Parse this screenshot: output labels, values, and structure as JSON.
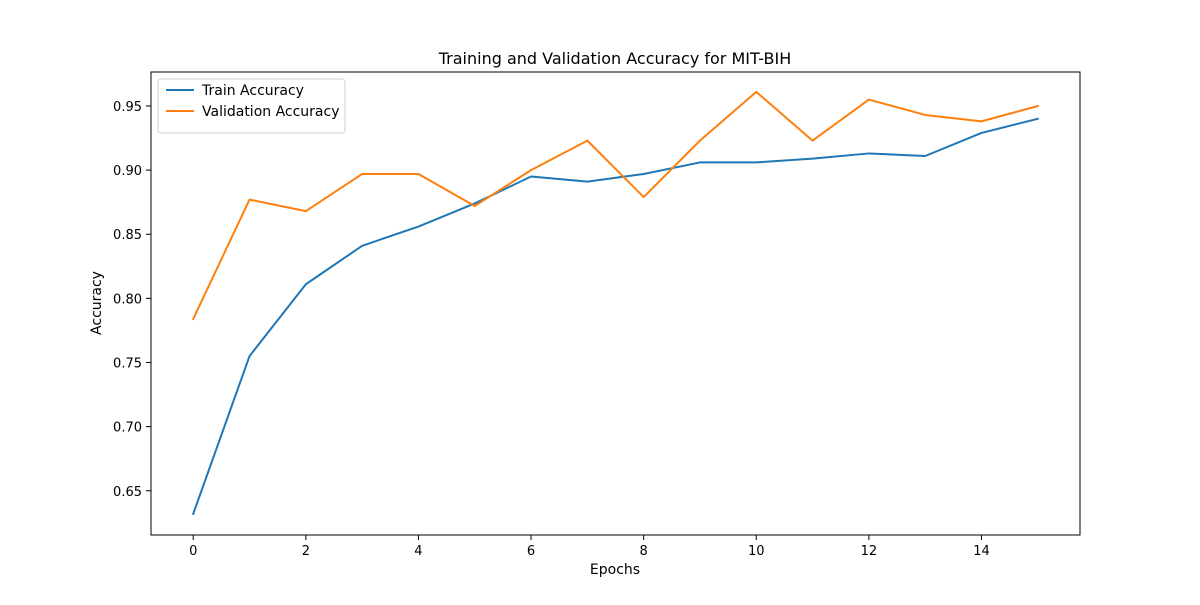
{
  "chart_data": {
    "type": "line",
    "title": "Training and Validation Accuracy for MIT-BIH",
    "xlabel": "Epochs",
    "ylabel": "Accuracy",
    "x": [
      0,
      1,
      2,
      3,
      4,
      5,
      6,
      7,
      8,
      9,
      10,
      11,
      12,
      13,
      14,
      15
    ],
    "xlim": [
      -0.75,
      15.75
    ],
    "ylim": [
      0.6155,
      0.9765
    ],
    "x_ticks": [
      0,
      2,
      4,
      6,
      8,
      10,
      12,
      14
    ],
    "y_ticks": [
      0.65,
      0.7,
      0.75,
      0.8,
      0.85,
      0.9,
      0.95
    ],
    "x_tick_labels": [
      "0",
      "2",
      "4",
      "6",
      "8",
      "10",
      "12",
      "14"
    ],
    "y_tick_labels": [
      "0.65",
      "0.70",
      "0.75",
      "0.80",
      "0.85",
      "0.90",
      "0.95"
    ],
    "grid": false,
    "legend_position": "upper-left",
    "series": [
      {
        "name": "Train Accuracy",
        "color": "#1f77b4",
        "values": [
          0.632,
          0.755,
          0.811,
          0.841,
          0.856,
          0.874,
          0.895,
          0.891,
          0.897,
          0.906,
          0.906,
          0.909,
          0.913,
          0.911,
          0.929,
          0.94
        ]
      },
      {
        "name": "Validation Accuracy",
        "color": "#ff7f0e",
        "values": [
          0.784,
          0.877,
          0.868,
          0.897,
          0.897,
          0.872,
          0.9,
          0.923,
          0.879,
          0.923,
          0.961,
          0.923,
          0.955,
          0.943,
          0.938,
          0.95
        ]
      }
    ]
  }
}
